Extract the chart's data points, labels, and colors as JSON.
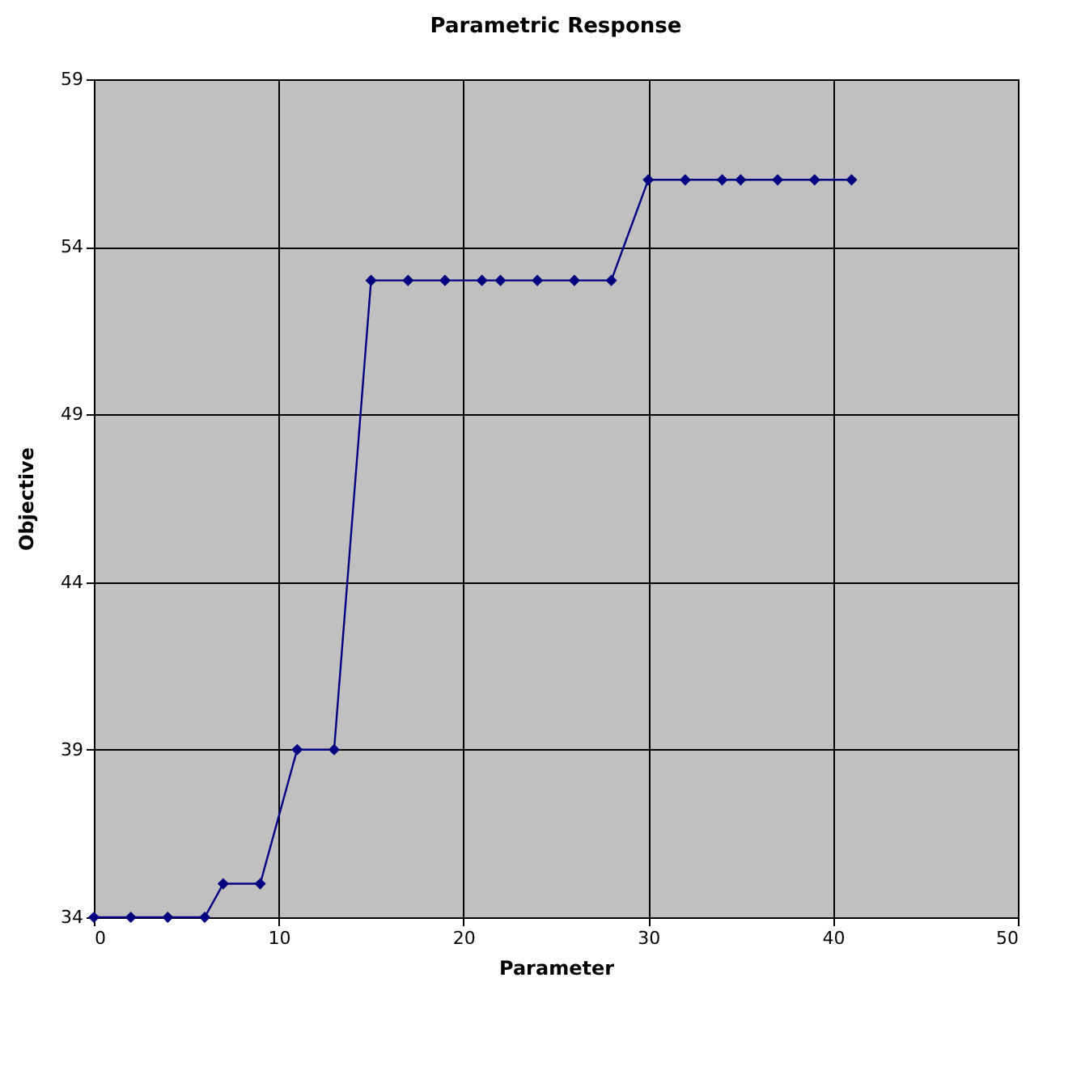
{
  "chart_data": {
    "type": "line",
    "title": "Parametric Response",
    "xlabel": "Parameter",
    "ylabel": "Objective",
    "x": [
      0,
      2,
      4,
      6,
      7,
      9,
      11,
      13,
      15,
      17,
      19,
      21,
      22,
      24,
      26,
      28,
      30,
      32,
      34,
      35,
      37,
      39,
      41
    ],
    "series": [
      {
        "color": "#000080",
        "values": [
          34,
          34,
          34,
          34,
          35,
          35,
          39,
          39,
          53,
          53,
          53,
          53,
          53,
          53,
          53,
          53,
          56,
          56,
          56,
          56,
          56,
          56,
          56
        ]
      }
    ],
    "xlim": [
      0,
      50
    ],
    "xticks": [
      0,
      10,
      20,
      30,
      40,
      50
    ],
    "ylim": [
      34,
      59
    ],
    "yticks": [
      34,
      39,
      44,
      49,
      54,
      59
    ],
    "grid": true,
    "marker": "diamond",
    "line_style": "solid"
  }
}
